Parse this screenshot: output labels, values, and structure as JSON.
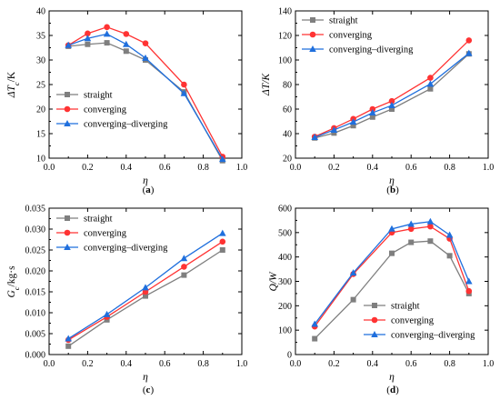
{
  "colors": {
    "straight": "#7f7f7f",
    "converging": "#ff3333",
    "converging_diverging": "#1f6fdd"
  },
  "chart_data": [
    {
      "panel": "a",
      "caption": "(a)",
      "type": "line",
      "xlabel": "η",
      "ylabel": "ΔT_c/K",
      "xlim": [
        0.0,
        1.0
      ],
      "ylim": [
        10,
        40
      ],
      "xticks": [
        "0.0",
        "0.2",
        "0.4",
        "0.6",
        "0.8",
        "1.0"
      ],
      "yticks": [
        "10",
        "15",
        "20",
        "25",
        "30",
        "35",
        "40"
      ],
      "legend": "bottom-left",
      "x": [
        0.1,
        0.2,
        0.3,
        0.4,
        0.5,
        0.7,
        0.9
      ],
      "series": [
        {
          "name": "straight",
          "marker": "square",
          "color": "#7f7f7f",
          "values": [
            32.8,
            33.2,
            33.5,
            31.8,
            30.0,
            23.5,
            9.5
          ]
        },
        {
          "name": "converging",
          "marker": "circle",
          "color": "#ff3333",
          "values": [
            33.0,
            35.4,
            36.7,
            35.3,
            33.4,
            25.0,
            10.3
          ]
        },
        {
          "name": "converging–diverging",
          "marker": "triangle",
          "color": "#1f6fdd",
          "values": [
            33.0,
            34.4,
            35.3,
            33.2,
            30.4,
            23.2,
            9.8
          ]
        }
      ]
    },
    {
      "panel": "b",
      "caption": "(b)",
      "type": "line",
      "xlabel": "η",
      "ylabel": "ΔT/K",
      "xlim": [
        0.0,
        1.0
      ],
      "ylim": [
        20,
        140
      ],
      "xticks": [
        "0.0",
        "0.2",
        "0.4",
        "0.6",
        "0.8",
        "1.0"
      ],
      "yticks": [
        "20",
        "40",
        "60",
        "80",
        "100",
        "120",
        "140"
      ],
      "legend": "top-left",
      "x": [
        0.1,
        0.2,
        0.3,
        0.4,
        0.5,
        0.7,
        0.9
      ],
      "series": [
        {
          "name": "straight",
          "marker": "square",
          "color": "#7f7f7f",
          "values": [
            36.5,
            40.5,
            46.5,
            53.5,
            60.0,
            76.5,
            105.0
          ]
        },
        {
          "name": "converging",
          "marker": "circle",
          "color": "#ff3333",
          "values": [
            37.5,
            44.5,
            52.0,
            60.0,
            66.5,
            85.5,
            116.0
          ]
        },
        {
          "name": "converging–diverging",
          "marker": "triangle",
          "color": "#1f6fdd",
          "values": [
            37.0,
            43.0,
            49.5,
            57.0,
            63.0,
            80.5,
            105.5
          ]
        }
      ]
    },
    {
      "panel": "c",
      "caption": "(c)",
      "type": "line",
      "xlabel": "η",
      "ylabel": "G_c/kg·s",
      "xlim": [
        0.0,
        1.0
      ],
      "ylim": [
        0.0,
        0.035
      ],
      "xticks": [
        "0.0",
        "0.2",
        "0.4",
        "0.6",
        "0.8",
        "1.0"
      ],
      "yticks": [
        "0.000",
        "0.005",
        "0.010",
        "0.015",
        "0.020",
        "0.025",
        "0.030",
        "0.035"
      ],
      "legend": "top-left",
      "x": [
        0.1,
        0.3,
        0.5,
        0.7,
        0.9
      ],
      "series": [
        {
          "name": "straight",
          "marker": "square",
          "color": "#7f7f7f",
          "values": [
            0.002,
            0.0083,
            0.014,
            0.019,
            0.025
          ]
        },
        {
          "name": "converging",
          "marker": "circle",
          "color": "#ff3333",
          "values": [
            0.0035,
            0.009,
            0.015,
            0.021,
            0.027
          ]
        },
        {
          "name": "converging–diverging",
          "marker": "triangle",
          "color": "#1f6fdd",
          "values": [
            0.0038,
            0.0096,
            0.016,
            0.023,
            0.029
          ]
        }
      ]
    },
    {
      "panel": "d",
      "caption": "(d)",
      "type": "line",
      "xlabel": "η",
      "ylabel": "Q/W",
      "xlim": [
        0.0,
        1.0
      ],
      "ylim": [
        0,
        600
      ],
      "xticks": [
        "0.0",
        "0.2",
        "0.4",
        "0.6",
        "0.8",
        "1.0"
      ],
      "yticks": [
        "0",
        "100",
        "200",
        "300",
        "400",
        "500",
        "600"
      ],
      "legend": "bottom-center",
      "x": [
        0.1,
        0.3,
        0.5,
        0.6,
        0.7,
        0.8,
        0.9
      ],
      "series": [
        {
          "name": "straight",
          "marker": "square",
          "color": "#7f7f7f",
          "values": [
            65,
            225,
            415,
            460,
            465,
            405,
            250
          ]
        },
        {
          "name": "converging",
          "marker": "circle",
          "color": "#ff3333",
          "values": [
            115,
            330,
            500,
            515,
            525,
            475,
            260
          ]
        },
        {
          "name": "converging–diverging",
          "marker": "triangle",
          "color": "#1f6fdd",
          "values": [
            125,
            335,
            515,
            535,
            545,
            490,
            300
          ]
        }
      ]
    }
  ]
}
